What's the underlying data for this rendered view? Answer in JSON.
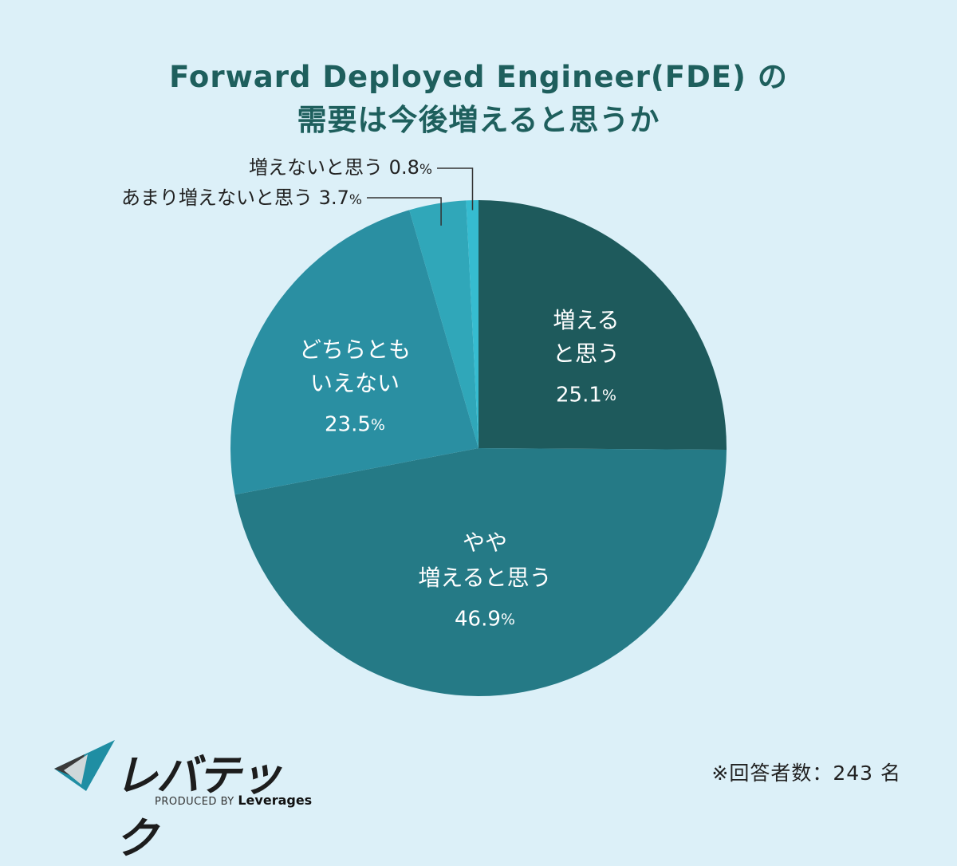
{
  "chart_data": {
    "type": "pie",
    "title": "Forward Deployed Engineer(FDE) の\n需要は今後増えると思うか",
    "slices": [
      {
        "label": "増える\nと思う",
        "value": 25.1,
        "color": "#1e5a5c",
        "placement": "inside"
      },
      {
        "label": "やや\n増えると思う",
        "value": 46.9,
        "color": "#257a86",
        "placement": "inside"
      },
      {
        "label": "どちらとも\nいえない",
        "value": 23.5,
        "color": "#2a8fa2",
        "placement": "inside"
      },
      {
        "label": "あまり増えないと思う",
        "value": 3.7,
        "color": "#30a7b9",
        "placement": "callout"
      },
      {
        "label": "増えないと思う",
        "value": 0.8,
        "color": "#36bcd0",
        "placement": "callout"
      }
    ],
    "unit": "%",
    "start": "12 o'clock",
    "direction": "clockwise",
    "legend": "none"
  },
  "note": "※回答者数：243 名",
  "logo": {
    "wordmark": "レバテック",
    "produced_by": "PRODUCED BY",
    "brand": "Leverages"
  },
  "colors": {
    "background": "#dcf0f8",
    "title": "#1e5f5d"
  }
}
